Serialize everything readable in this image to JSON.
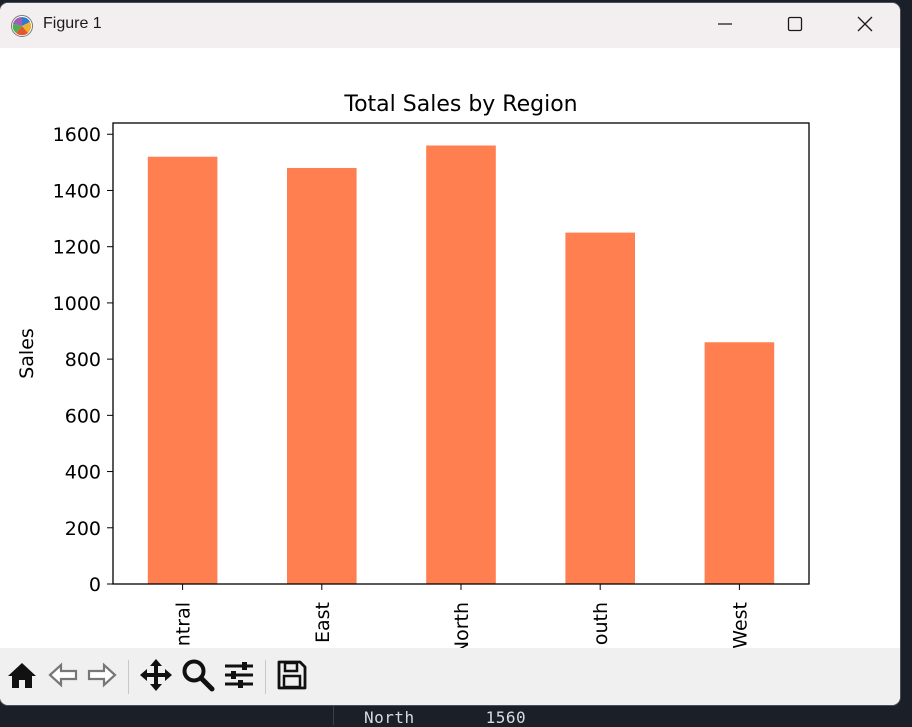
{
  "window": {
    "title": "Figure 1",
    "icons": {
      "app": "matplotlib-icon",
      "minimize": "minimize-icon",
      "maximize": "maximize-icon",
      "close": "close-icon"
    }
  },
  "toolbar": {
    "tools": [
      "home-icon",
      "back-arrow-icon",
      "forward-arrow-icon",
      "pan-icon",
      "zoom-icon",
      "configure-subplots-icon",
      "save-icon"
    ]
  },
  "terminal": {
    "visible_line": "North       1560"
  },
  "colors": {
    "bar": "#ff7f50",
    "titlebar": "#f3eff1",
    "toolbar": "#f0f0f0"
  },
  "chart_data": {
    "type": "bar",
    "title": "Total Sales by Region",
    "xlabel": "",
    "ylabel": "Sales",
    "categories": [
      "Central",
      "East",
      "North",
      "South",
      "West"
    ],
    "tick_labels_visible": [
      "ntral",
      "East",
      "North",
      "outh",
      "West"
    ],
    "values": [
      1520,
      1480,
      1560,
      1250,
      860
    ],
    "ylim": [
      0,
      1640
    ],
    "yticks": [
      0,
      200,
      400,
      600,
      800,
      1000,
      1200,
      1400,
      1600
    ],
    "xtick_rotation": "vertical",
    "grid": false,
    "legend": "none"
  }
}
